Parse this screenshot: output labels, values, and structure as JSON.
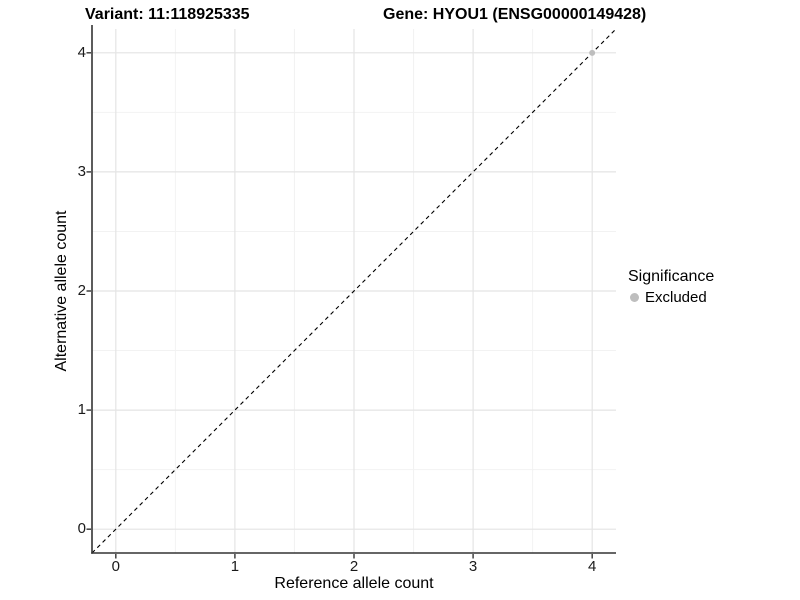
{
  "chart_data": {
    "type": "scatter",
    "title_left": "Variant: 11:118925335",
    "title_right": "Gene: HYOU1 (ENSG00000149428)",
    "xlabel": "Reference allele count",
    "ylabel": "Alternative allele count",
    "xlim": [
      -0.2,
      4.2
    ],
    "ylim": [
      -0.2,
      4.2
    ],
    "xticks": [
      0,
      1,
      2,
      3,
      4
    ],
    "yticks": [
      0,
      1,
      2,
      3,
      4
    ],
    "minor_ticks_x": [
      0.5,
      1.5,
      2.5,
      3.5
    ],
    "minor_ticks_y": [
      0.5,
      1.5,
      2.5,
      3.5
    ],
    "grid": true,
    "legend_position": "right",
    "points": [
      {
        "x": 4,
        "y": 4,
        "significance": "Excluded"
      }
    ],
    "identity_line": {
      "slope": 1,
      "intercept": 0,
      "style": "dashed"
    },
    "legend": {
      "title": "Significance",
      "items": [
        {
          "label": "Excluded",
          "marker": "circle",
          "color": "#bebebe"
        }
      ]
    },
    "colors": {
      "background": "#ffffff",
      "grid_major": "#e4e4e4",
      "grid_minor": "#f2f2f2",
      "axis_line": "#333333",
      "tick_label": "#1a1a1a",
      "title_text": "#000000",
      "point": "#bebebe",
      "identity_line": "#000000"
    }
  }
}
